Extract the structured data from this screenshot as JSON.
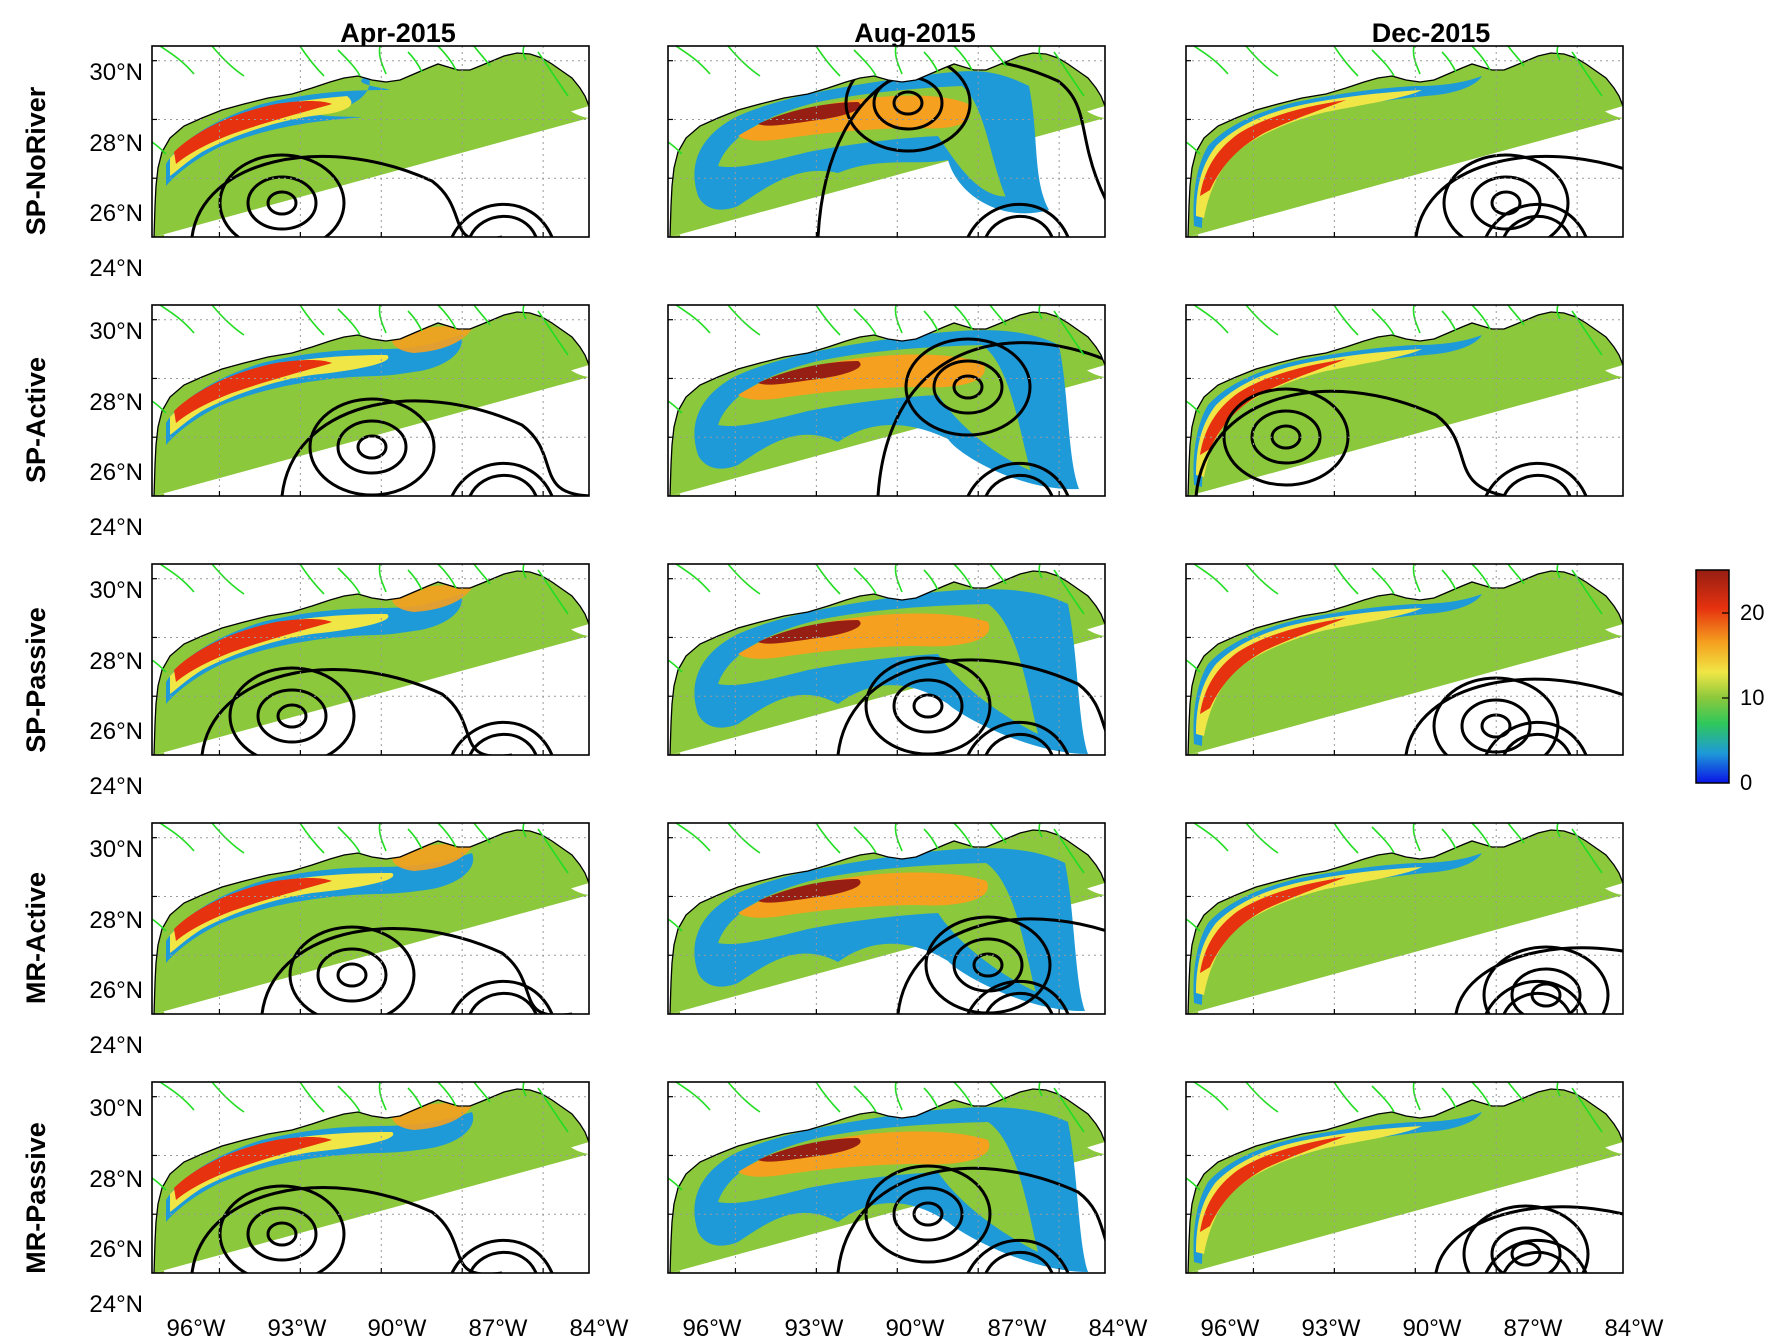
{
  "columns": [
    "Apr-2015",
    "Aug-2015",
    "Dec-2015"
  ],
  "rows": [
    "SP-NoRiver",
    "SP-Active",
    "SP-Passive",
    "MR-Active",
    "MR-Passive"
  ],
  "lat_ticks": [
    "30°N",
    "28°N",
    "26°N",
    "24°N"
  ],
  "lon_ticks": [
    "96°W",
    "93°W",
    "90°W",
    "87°W",
    "84°W"
  ],
  "colorbar": {
    "ticks": [
      "20",
      "10",
      "0"
    ],
    "range": [
      0,
      25
    ],
    "colors": [
      "#0a14e6",
      "#1e9ad8",
      "#2fc85a",
      "#8cc83c",
      "#f0e646",
      "#f5a01e",
      "#e6320f",
      "#961e12"
    ]
  },
  "map_extent": {
    "lon": [
      -98.5,
      -82.3
    ],
    "lat": [
      24.0,
      30.5
    ]
  },
  "colors": {
    "land_fill": "#ffffff",
    "coast": "#000000",
    "rivers": "#22dd22",
    "contour": "#000000"
  }
}
